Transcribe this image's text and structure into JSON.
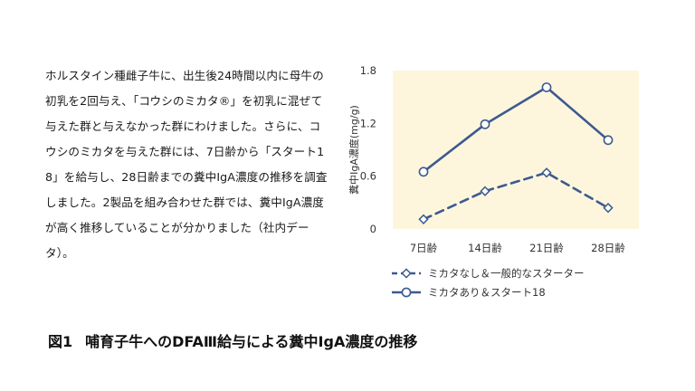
{
  "description": "ホルスタイン種雌子牛に、出生後24時間以内に母牛の初乳を2回与え、「コウシのミカタ®」を初乳に混ぜて与えた群と与えなかった群にわけました。さらに、コウシのミカタを与えた群には、7日齢から「スタート18」を給与し、28日齢までの糞中IgA濃度の推移を調査しました。2製品を組み合わせた群では、糞中IgA濃度が高く推移していることが分かりました（社内データ）。",
  "caption": {
    "number": "図1",
    "text": "哺育子牛へのDFAⅢ給与による糞中IgA濃度の推移"
  },
  "chart_data": {
    "type": "line",
    "categories": [
      "7日齢",
      "14日齢",
      "21日齢",
      "28日齢"
    ],
    "ylabel": "糞中IgA濃度(mg/g)",
    "xlabel": "",
    "ylim": [
      0,
      1.8
    ],
    "yticks": [
      0,
      0.6,
      1.2,
      1.8
    ],
    "ytick_labels": [
      "0",
      "0.6",
      "1.2",
      "1.8"
    ],
    "plot_background": "#fdf6dd",
    "grid": false,
    "legend_position": "bottom",
    "series": [
      {
        "name": "ミカタなし＆一般的なスターター",
        "values": [
          0.11,
          0.43,
          0.64,
          0.24
        ],
        "color": "#3d5a8f",
        "line_style": "dashed",
        "marker": "diamond"
      },
      {
        "name": "ミカタあり＆スタート18",
        "values": [
          0.65,
          1.19,
          1.61,
          1.01
        ],
        "color": "#3d5a8f",
        "line_style": "solid",
        "marker": "circle"
      }
    ]
  }
}
